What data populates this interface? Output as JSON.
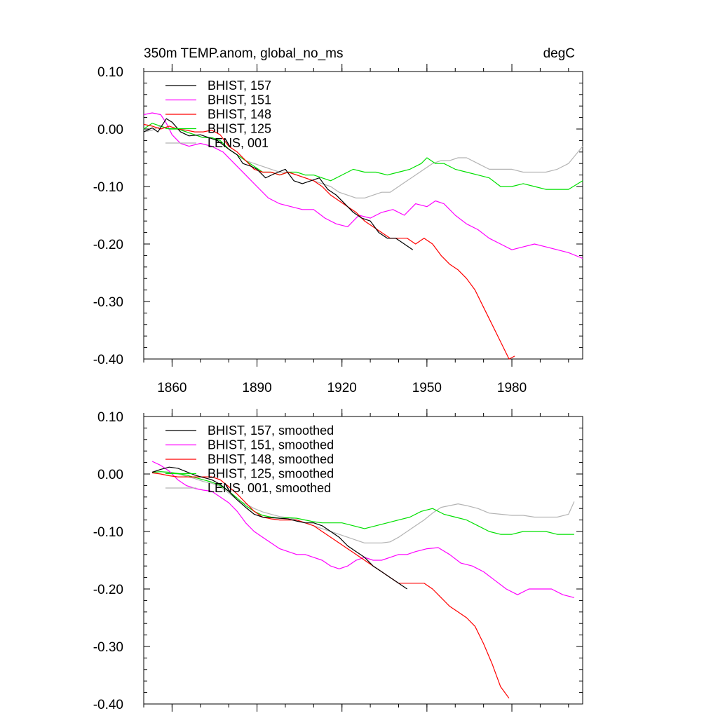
{
  "chart_data": [
    {
      "type": "line",
      "title": "350m TEMP.anom, global_no_ms",
      "units": "degC",
      "xlim": [
        1850,
        2005
      ],
      "ylim": [
        -0.4,
        0.1
      ],
      "x_ticks": [
        1860,
        1890,
        1920,
        1950,
        1980
      ],
      "x_tick_labels": [
        "1860",
        "1890",
        "1920",
        "1950",
        "1980"
      ],
      "y_ticks": [
        0.1,
        0.0,
        -0.1,
        -0.2,
        -0.3,
        -0.4
      ],
      "y_tick_labels": [
        "0.10",
        "0.00",
        "-0.10",
        "-0.20",
        "-0.30",
        "-0.40"
      ],
      "legend_position": "top-left",
      "series": [
        {
          "name": "BHIST, 157",
          "color": "#000000",
          "x": [
            1850,
            1853,
            1855,
            1858,
            1860,
            1863,
            1866,
            1870,
            1873,
            1876,
            1880,
            1883,
            1885,
            1888,
            1890,
            1893,
            1896,
            1900,
            1903,
            1906,
            1909,
            1912,
            1915,
            1918,
            1921,
            1924,
            1927,
            1930,
            1933,
            1936,
            1939,
            1942,
            1945
          ],
          "y": [
            -0.005,
            0.002,
            -0.005,
            0.018,
            0.012,
            -0.005,
            -0.012,
            -0.01,
            -0.015,
            -0.02,
            -0.035,
            -0.045,
            -0.06,
            -0.065,
            -0.07,
            -0.085,
            -0.078,
            -0.07,
            -0.09,
            -0.095,
            -0.09,
            -0.085,
            -0.105,
            -0.115,
            -0.13,
            -0.145,
            -0.155,
            -0.16,
            -0.18,
            -0.19,
            -0.19,
            -0.2,
            -0.21
          ]
        },
        {
          "name": "BHIST, 151",
          "color": "#ff00ff",
          "x": [
            1850,
            1853,
            1856,
            1858,
            1860,
            1863,
            1866,
            1870,
            1874,
            1878,
            1882,
            1886,
            1890,
            1894,
            1898,
            1902,
            1906,
            1910,
            1914,
            1918,
            1922,
            1926,
            1930,
            1934,
            1938,
            1942,
            1946,
            1950,
            1953,
            1956,
            1960,
            1964,
            1968,
            1972,
            1976,
            1980,
            1984,
            1988,
            1992,
            1996,
            2000,
            2005
          ],
          "y": [
            0.025,
            0.028,
            0.025,
            0.01,
            -0.01,
            -0.025,
            -0.03,
            -0.025,
            -0.03,
            -0.04,
            -0.06,
            -0.08,
            -0.1,
            -0.12,
            -0.13,
            -0.135,
            -0.14,
            -0.14,
            -0.155,
            -0.165,
            -0.17,
            -0.15,
            -0.155,
            -0.145,
            -0.14,
            -0.15,
            -0.13,
            -0.135,
            -0.125,
            -0.13,
            -0.15,
            -0.165,
            -0.175,
            -0.19,
            -0.2,
            -0.21,
            -0.205,
            -0.2,
            -0.205,
            -0.21,
            -0.215,
            -0.225
          ]
        },
        {
          "name": "BHIST, 148",
          "color": "#ff0000",
          "x": [
            1850,
            1853,
            1856,
            1859,
            1862,
            1865,
            1868,
            1871,
            1874,
            1877,
            1880,
            1883,
            1886,
            1889,
            1892,
            1895,
            1898,
            1901,
            1904,
            1907,
            1910,
            1913,
            1916,
            1919,
            1922,
            1925,
            1928,
            1931,
            1934,
            1937,
            1940,
            1943,
            1946,
            1949,
            1952,
            1955,
            1958,
            1961,
            1964,
            1967,
            1970,
            1973,
            1976,
            1979,
            1981
          ],
          "y": [
            0.008,
            0.005,
            0.0,
            0.005,
            0.0,
            -0.002,
            -0.005,
            -0.005,
            -0.002,
            -0.01,
            -0.03,
            -0.04,
            -0.055,
            -0.07,
            -0.075,
            -0.075,
            -0.08,
            -0.075,
            -0.08,
            -0.085,
            -0.09,
            -0.1,
            -0.115,
            -0.125,
            -0.135,
            -0.145,
            -0.16,
            -0.17,
            -0.18,
            -0.19,
            -0.19,
            -0.19,
            -0.2,
            -0.19,
            -0.2,
            -0.22,
            -0.235,
            -0.245,
            -0.26,
            -0.28,
            -0.31,
            -0.34,
            -0.37,
            -0.4,
            -0.395
          ]
        },
        {
          "name": "BHIST, 125",
          "color": "#00e000",
          "x": [
            1850,
            1853,
            1856,
            1859,
            1862,
            1865,
            1868,
            1871,
            1874,
            1877,
            1880,
            1883,
            1886,
            1889,
            1892,
            1895,
            1898,
            1901,
            1904,
            1907,
            1910,
            1913,
            1916,
            1920,
            1924,
            1928,
            1932,
            1936,
            1940,
            1944,
            1948,
            1950,
            1953,
            1956,
            1960,
            1964,
            1968,
            1972,
            1976,
            1980,
            1984,
            1988,
            1992,
            1996,
            2000,
            2005
          ],
          "y": [
            0.0,
            0.01,
            0.005,
            0.0,
            0.0,
            -0.005,
            -0.01,
            -0.015,
            -0.015,
            -0.02,
            -0.035,
            -0.045,
            -0.055,
            -0.065,
            -0.075,
            -0.075,
            -0.08,
            -0.075,
            -0.075,
            -0.08,
            -0.08,
            -0.085,
            -0.09,
            -0.08,
            -0.07,
            -0.075,
            -0.075,
            -0.08,
            -0.075,
            -0.07,
            -0.06,
            -0.05,
            -0.06,
            -0.06,
            -0.07,
            -0.075,
            -0.08,
            -0.085,
            -0.1,
            -0.1,
            -0.095,
            -0.1,
            -0.105,
            -0.105,
            -0.105,
            -0.09
          ]
        },
        {
          "name": "LENS, 001",
          "color": "#b4b4b4",
          "x": [
            1850,
            1853,
            1856,
            1859,
            1862,
            1865,
            1868,
            1871,
            1874,
            1877,
            1880,
            1883,
            1886,
            1889,
            1892,
            1895,
            1898,
            1901,
            1904,
            1907,
            1910,
            1913,
            1916,
            1919,
            1922,
            1925,
            1928,
            1931,
            1934,
            1937,
            1940,
            1943,
            1946,
            1949,
            1952,
            1955,
            1958,
            1961,
            1964,
            1968,
            1972,
            1976,
            1980,
            1984,
            1988,
            1992,
            1996,
            2000,
            2005
          ],
          "y": [
            -0.005,
            -0.002,
            0.005,
            0.0,
            0.0,
            -0.005,
            -0.01,
            -0.015,
            -0.015,
            -0.02,
            -0.035,
            -0.045,
            -0.055,
            -0.06,
            -0.065,
            -0.07,
            -0.075,
            -0.075,
            -0.08,
            -0.085,
            -0.09,
            -0.095,
            -0.1,
            -0.11,
            -0.115,
            -0.12,
            -0.12,
            -0.115,
            -0.11,
            -0.11,
            -0.1,
            -0.09,
            -0.08,
            -0.07,
            -0.06,
            -0.055,
            -0.055,
            -0.05,
            -0.05,
            -0.06,
            -0.07,
            -0.07,
            -0.07,
            -0.075,
            -0.075,
            -0.075,
            -0.07,
            -0.06,
            -0.03
          ]
        }
      ]
    },
    {
      "type": "line",
      "title": "",
      "xlim": [
        1850,
        2005
      ],
      "ylim": [
        -0.4,
        0.1
      ],
      "y_ticks": [
        0.1,
        0.0,
        -0.1,
        -0.2,
        -0.3,
        -0.4
      ],
      "y_tick_labels": [
        "0.10",
        "0.00",
        "-0.10",
        "-0.20",
        "-0.30",
        "-0.40"
      ],
      "legend_position": "top-left",
      "series": [
        {
          "name": "BHIST, 157, smoothed",
          "color": "#000000",
          "x": [
            1853,
            1856,
            1859,
            1862,
            1865,
            1868,
            1871,
            1874,
            1877,
            1880,
            1883,
            1886,
            1889,
            1892,
            1895,
            1898,
            1901,
            1904,
            1907,
            1910,
            1913,
            1916,
            1919,
            1922,
            1925,
            1928,
            1931,
            1934,
            1937,
            1940,
            1943
          ],
          "y": [
            0.003,
            0.008,
            0.012,
            0.01,
            0.004,
            -0.002,
            -0.006,
            -0.01,
            -0.018,
            -0.03,
            -0.045,
            -0.058,
            -0.07,
            -0.075,
            -0.076,
            -0.077,
            -0.078,
            -0.082,
            -0.085,
            -0.085,
            -0.09,
            -0.1,
            -0.11,
            -0.125,
            -0.135,
            -0.145,
            -0.16,
            -0.17,
            -0.18,
            -0.19,
            -0.2
          ]
        },
        {
          "name": "BHIST, 151, smoothed",
          "color": "#ff00ff",
          "x": [
            1853,
            1856,
            1859,
            1862,
            1865,
            1868,
            1871,
            1874,
            1877,
            1880,
            1883,
            1886,
            1889,
            1892,
            1895,
            1898,
            1901,
            1904,
            1907,
            1910,
            1913,
            1916,
            1919,
            1922,
            1925,
            1928,
            1931,
            1934,
            1937,
            1940,
            1943,
            1946,
            1950,
            1954,
            1958,
            1962,
            1966,
            1970,
            1974,
            1978,
            1982,
            1986,
            1990,
            1994,
            1998,
            2002
          ],
          "y": [
            0.022,
            0.015,
            0.005,
            -0.01,
            -0.02,
            -0.025,
            -0.028,
            -0.03,
            -0.04,
            -0.05,
            -0.065,
            -0.085,
            -0.1,
            -0.11,
            -0.12,
            -0.13,
            -0.135,
            -0.14,
            -0.14,
            -0.145,
            -0.15,
            -0.16,
            -0.165,
            -0.16,
            -0.15,
            -0.145,
            -0.15,
            -0.15,
            -0.145,
            -0.14,
            -0.14,
            -0.135,
            -0.13,
            -0.128,
            -0.14,
            -0.155,
            -0.16,
            -0.17,
            -0.185,
            -0.2,
            -0.21,
            -0.2,
            -0.2,
            -0.2,
            -0.21,
            -0.215
          ]
        },
        {
          "name": "BHIST, 148, smoothed",
          "color": "#ff0000",
          "x": [
            1853,
            1856,
            1859,
            1862,
            1865,
            1868,
            1871,
            1874,
            1877,
            1880,
            1883,
            1886,
            1889,
            1892,
            1895,
            1898,
            1901,
            1904,
            1907,
            1910,
            1913,
            1916,
            1919,
            1922,
            1925,
            1928,
            1931,
            1934,
            1937,
            1940,
            1943,
            1946,
            1949,
            1952,
            1955,
            1958,
            1961,
            1964,
            1967,
            1970,
            1973,
            1976,
            1979
          ],
          "y": [
            0.002,
            0.0,
            -0.003,
            -0.005,
            -0.005,
            -0.005,
            -0.005,
            -0.005,
            -0.01,
            -0.022,
            -0.035,
            -0.05,
            -0.065,
            -0.075,
            -0.078,
            -0.08,
            -0.08,
            -0.08,
            -0.085,
            -0.09,
            -0.1,
            -0.11,
            -0.12,
            -0.13,
            -0.14,
            -0.15,
            -0.16,
            -0.17,
            -0.18,
            -0.19,
            -0.19,
            -0.19,
            -0.19,
            -0.2,
            -0.215,
            -0.23,
            -0.24,
            -0.25,
            -0.265,
            -0.295,
            -0.33,
            -0.37,
            -0.39
          ]
        },
        {
          "name": "BHIST, 125, smoothed",
          "color": "#00e000",
          "x": [
            1853,
            1856,
            1859,
            1862,
            1865,
            1868,
            1871,
            1874,
            1877,
            1880,
            1883,
            1886,
            1889,
            1892,
            1895,
            1898,
            1901,
            1904,
            1907,
            1910,
            1913,
            1916,
            1920,
            1924,
            1928,
            1932,
            1936,
            1940,
            1944,
            1948,
            1952,
            1956,
            1960,
            1964,
            1968,
            1972,
            1976,
            1980,
            1984,
            1988,
            1992,
            1996,
            2000,
            2002
          ],
          "y": [
            0.003,
            0.004,
            0.003,
            0.001,
            -0.002,
            -0.006,
            -0.01,
            -0.014,
            -0.02,
            -0.03,
            -0.042,
            -0.055,
            -0.065,
            -0.072,
            -0.075,
            -0.077,
            -0.076,
            -0.077,
            -0.08,
            -0.083,
            -0.085,
            -0.085,
            -0.085,
            -0.09,
            -0.095,
            -0.09,
            -0.085,
            -0.08,
            -0.075,
            -0.065,
            -0.06,
            -0.07,
            -0.075,
            -0.08,
            -0.09,
            -0.1,
            -0.105,
            -0.105,
            -0.1,
            -0.1,
            -0.1,
            -0.105,
            -0.105,
            -0.105
          ]
        },
        {
          "name": "LENS, 001, smoothed",
          "color": "#b4b4b4",
          "x": [
            1853,
            1856,
            1859,
            1862,
            1865,
            1868,
            1871,
            1874,
            1877,
            1880,
            1883,
            1886,
            1889,
            1892,
            1895,
            1898,
            1901,
            1904,
            1907,
            1910,
            1913,
            1916,
            1919,
            1922,
            1925,
            1928,
            1931,
            1934,
            1937,
            1940,
            1943,
            1946,
            1949,
            1952,
            1955,
            1958,
            1961,
            1964,
            1968,
            1972,
            1976,
            1980,
            1984,
            1988,
            1992,
            1996,
            2000,
            2002
          ],
          "y": [
            0.002,
            0.004,
            0.002,
            0.0,
            -0.004,
            -0.008,
            -0.013,
            -0.016,
            -0.022,
            -0.033,
            -0.045,
            -0.052,
            -0.06,
            -0.066,
            -0.07,
            -0.074,
            -0.076,
            -0.08,
            -0.085,
            -0.09,
            -0.095,
            -0.1,
            -0.105,
            -0.11,
            -0.115,
            -0.12,
            -0.12,
            -0.12,
            -0.118,
            -0.11,
            -0.1,
            -0.09,
            -0.08,
            -0.068,
            -0.058,
            -0.055,
            -0.052,
            -0.055,
            -0.06,
            -0.068,
            -0.07,
            -0.072,
            -0.072,
            -0.075,
            -0.075,
            -0.075,
            -0.07,
            -0.048
          ]
        }
      ]
    }
  ]
}
